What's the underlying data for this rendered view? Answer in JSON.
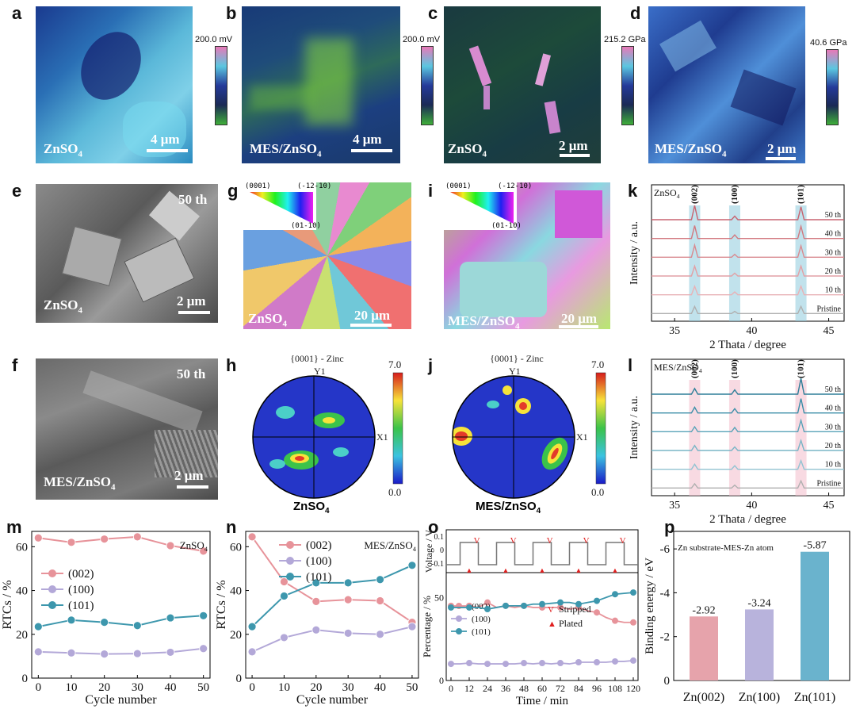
{
  "panels": {
    "a": {
      "label": "a",
      "caption": "ZnSO",
      "sub": "4",
      "scale": "4 μm",
      "cbar_max": "200.0 mV"
    },
    "b": {
      "label": "b",
      "caption": "MES/ZnSO",
      "sub": "4",
      "scale": "4 μm",
      "cbar_max": "200.0 mV"
    },
    "c": {
      "label": "c",
      "caption": "ZnSO",
      "sub": "4",
      "scale": "2 μm",
      "cbar_max": "215.2 GPa"
    },
    "d": {
      "label": "d",
      "caption": "MES/ZnSO",
      "sub": "4",
      "scale": "2 μm",
      "cbar_max": "40.6 GPa"
    },
    "e": {
      "label": "e",
      "caption": "ZnSO",
      "sub": "4",
      "scale": "2 μm",
      "cycle": "50 th"
    },
    "f": {
      "label": "f",
      "caption": "MES/ZnSO",
      "sub": "4",
      "scale": "2 μm",
      "cycle": "50 th"
    },
    "g": {
      "label": "g",
      "caption": "ZnSO",
      "sub": "4",
      "scale": "20 μm",
      "tri_a": "(0001)",
      "tri_b": "(-12-10)",
      "tri_c": "(01-10)"
    },
    "i": {
      "label": "i",
      "caption": "MES/ZnSO",
      "sub": "4",
      "scale": "20 μm",
      "tri_a": "(0001)",
      "tri_b": "(-12-10)",
      "tri_c": "(01-10)"
    },
    "h": {
      "label": "h",
      "title": "{0001} - Zinc",
      "y": "Y1",
      "x": "X1",
      "cmax": "7.0",
      "cmin": "0.0",
      "caption": "ZnSO",
      "sub": "4"
    },
    "j": {
      "label": "j",
      "title": "{0001} - Zinc",
      "y": "Y1",
      "x": "X1",
      "cmax": "7.0",
      "cmin": "0.0",
      "caption": "MES/ZnSO",
      "sub": "4"
    },
    "k": {
      "label": "k",
      "legend": "ZnSO4"
    },
    "l": {
      "label": "l",
      "legend": "MES/ZnSO4"
    },
    "m": {
      "label": "m"
    },
    "n": {
      "label": "n"
    },
    "o": {
      "label": "o"
    },
    "p": {
      "label": "p"
    }
  },
  "chart_data": [
    {
      "id": "k",
      "type": "line",
      "title": "ZnSO4",
      "xlabel": "2 Thata / degree",
      "ylabel": "Intensity / a.u.",
      "xlim": [
        33.5,
        46
      ],
      "xticks": [
        "35",
        "40",
        "45"
      ],
      "peak_labels": [
        "(002)",
        "(100)",
        "(101)"
      ],
      "peak_positions": [
        36.3,
        38.9,
        43.2
      ],
      "series": [
        "50 th",
        "40 th",
        "30 th",
        "20 th",
        "10 th",
        "Pristine"
      ],
      "peak_heights": [
        [
          1.0,
          0.25,
          0.9
        ],
        [
          0.9,
          0.25,
          0.85
        ],
        [
          0.85,
          0.2,
          0.8
        ],
        [
          0.7,
          0.2,
          0.7
        ],
        [
          0.6,
          0.2,
          0.6
        ],
        [
          0.5,
          0.15,
          0.5
        ]
      ]
    },
    {
      "id": "l",
      "type": "line",
      "title": "MES/ZnSO4",
      "xlabel": "2 Thata / degree",
      "ylabel": "Intensity / a.u.",
      "xlim": [
        33.5,
        46
      ],
      "xticks": [
        "35",
        "40",
        "45"
      ],
      "peak_labels": [
        "(002)",
        "(100)",
        "(101)"
      ],
      "peak_positions": [
        36.3,
        38.9,
        43.2
      ],
      "series": [
        "50 th",
        "40 th",
        "30 th",
        "20 th",
        "10 th",
        "Pristine"
      ],
      "peak_heights": [
        [
          0.4,
          0.3,
          1.1
        ],
        [
          0.4,
          0.3,
          1.0
        ],
        [
          0.35,
          0.3,
          0.8
        ],
        [
          0.35,
          0.25,
          0.7
        ],
        [
          0.35,
          0.25,
          0.6
        ],
        [
          0.3,
          0.2,
          0.5
        ]
      ]
    },
    {
      "id": "m",
      "type": "line",
      "annotation": "ZnSO4",
      "xlabel": "Cycle number",
      "ylabel": "RTCs / %",
      "x": [
        0,
        10,
        20,
        30,
        40,
        50
      ],
      "xlim": [
        -2,
        52
      ],
      "ylim": [
        0,
        67
      ],
      "xticks": [
        "0",
        "10",
        "20",
        "30",
        "40",
        "50"
      ],
      "yticks": [
        "0",
        "20",
        "40",
        "60"
      ],
      "series": [
        {
          "name": "(002)",
          "color": "#e7939a",
          "values": [
            64,
            62,
            63.5,
            64.5,
            60.5,
            58
          ]
        },
        {
          "name": "(100)",
          "color": "#b3a8d8",
          "values": [
            12,
            11.5,
            11,
            11.2,
            11.8,
            13.5
          ]
        },
        {
          "name": "(101)",
          "color": "#3d97ad",
          "values": [
            23.5,
            26.5,
            25.5,
            24,
            27.5,
            28.5
          ]
        }
      ]
    },
    {
      "id": "n",
      "type": "line",
      "annotation": "MES/ZnSO4",
      "xlabel": "Cycle number",
      "ylabel": "RTCs / %",
      "x": [
        0,
        10,
        20,
        30,
        40,
        50
      ],
      "xlim": [
        -2,
        52
      ],
      "ylim": [
        0,
        67
      ],
      "xticks": [
        "0",
        "10",
        "20",
        "30",
        "40",
        "50"
      ],
      "yticks": [
        "0",
        "20",
        "40",
        "60"
      ],
      "series": [
        {
          "name": "(002)",
          "color": "#e7939a",
          "values": [
            64.5,
            44,
            35,
            35.8,
            35.3,
            25.5
          ]
        },
        {
          "name": "(100)",
          "color": "#b3a8d8",
          "values": [
            12,
            18.5,
            22,
            20.5,
            20,
            23.5
          ]
        },
        {
          "name": "(101)",
          "color": "#3d97ad",
          "values": [
            23.5,
            37.5,
            43.5,
            43.5,
            45,
            51.5
          ]
        }
      ]
    },
    {
      "id": "o",
      "type": "line",
      "xlabel": "Time / min",
      "ylabel": "Percentage / %",
      "ylabel_top": "Voltage / V",
      "x": [
        0,
        6,
        12,
        18,
        24,
        30,
        36,
        42,
        48,
        54,
        60,
        66,
        72,
        78,
        84,
        90,
        96,
        102,
        108,
        114,
        120
      ],
      "xticks": [
        "0",
        "12",
        "24",
        "36",
        "48",
        "60",
        "72",
        "84",
        "96",
        "108",
        "120"
      ],
      "yticks": [
        "0",
        "50"
      ],
      "vticks": [
        "0.1",
        "0",
        "-0.1"
      ],
      "series": [
        {
          "name": "(002)",
          "color": "#e7939a",
          "values": [
            45,
            44,
            45,
            44,
            47,
            44,
            45,
            44,
            45,
            44,
            44,
            44,
            44,
            43,
            44,
            42,
            41,
            38,
            36,
            35,
            35
          ]
        },
        {
          "name": "(100)",
          "color": "#b3a8d8",
          "values": [
            10,
            10,
            10.5,
            10,
            10,
            10,
            10,
            10,
            10.5,
            10,
            10.5,
            10,
            10.5,
            10,
            11,
            11,
            11,
            11,
            11.5,
            11.5,
            12
          ]
        },
        {
          "name": "(101)",
          "color": "#3d97ad",
          "values": [
            44,
            44,
            44,
            44,
            43,
            44,
            45,
            45,
            45,
            46,
            46,
            46.5,
            47,
            47,
            46,
            47,
            48,
            50,
            52,
            52.5,
            53
          ]
        }
      ],
      "markers": [
        {
          "name": "Stripped",
          "symbol": "V"
        },
        {
          "name": "Plated",
          "symbol": "▲"
        }
      ]
    },
    {
      "id": "p",
      "type": "bar",
      "annotation": "Zn substrate-MES-Zn atom",
      "ylabel": "Binding energy / eV",
      "categories": [
        "Zn(002)",
        "Zn(100)",
        "Zn(101)"
      ],
      "values": [
        -2.92,
        -3.24,
        -5.87
      ],
      "value_labels": [
        "-2.92",
        "-3.24",
        "-5.87"
      ],
      "colors": [
        "#e6a3ab",
        "#b8b3dc",
        "#6ab3cd"
      ],
      "yticks": [
        "0",
        "-2",
        "-4",
        "-6"
      ]
    }
  ]
}
